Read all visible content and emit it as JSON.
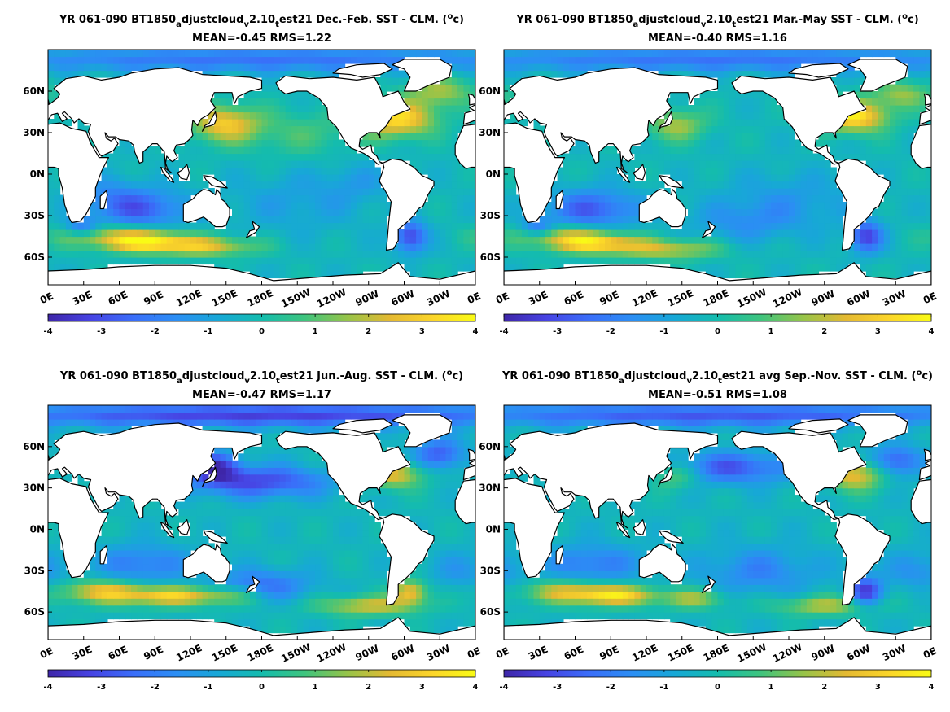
{
  "figure": {
    "colormap": [
      "#3e26a8",
      "#4743e3",
      "#3a6ef9",
      "#2b8ef4",
      "#17a8d6",
      "#14bcad",
      "#3ec47e",
      "#96c449",
      "#e4b932",
      "#fbd52a",
      "#f9fb15"
    ],
    "land_color": "#ffffff",
    "coastline_color": "#000000"
  },
  "chart_data": [
    {
      "type": "heatmap",
      "title_line1": {
        "pre": "YR 061-090 BT1850",
        "sub1": "a",
        "mid1": "djustcloud",
        "sub2": "v",
        "mid2": "2.10",
        "sub3": "t",
        "post": "est21  Dec.-Feb. SST - CLM. (",
        "sup": "o",
        "unit": "c)"
      },
      "stats": "MEAN=-0.45   RMS=1.22",
      "season": "DJF",
      "mean": -0.45,
      "rms": 1.22,
      "x_ticks": [
        "0E",
        "30E",
        "60E",
        "90E",
        "120E",
        "150E",
        "180E",
        "150W",
        "120W",
        "90W",
        "60W",
        "30W",
        "0E"
      ],
      "y_ticks": [
        "60N",
        "30N",
        "0N",
        "30S",
        "60S"
      ],
      "xlim": [
        0,
        360
      ],
      "ylim": [
        -80,
        90
      ],
      "colorbar_ticks": [
        "-4",
        "-3",
        "-2",
        "-1",
        "0",
        "1",
        "2",
        "3",
        "4"
      ],
      "clim": [
        -4,
        4
      ],
      "features": [
        {
          "region": "Gulf Stream / NW Atlantic",
          "value": 3.5
        },
        {
          "region": "Kuroshio extension",
          "value": 3.0
        },
        {
          "region": "Southern Ocean 40-55S",
          "value": 3.0
        },
        {
          "region": "Brazil-Malvinas confluence",
          "value": -3.0
        },
        {
          "region": "Central subtropical South Indian",
          "value": -2.5
        },
        {
          "region": "Arctic",
          "value": -2.0
        },
        {
          "region": "North Pacific central",
          "value": 1.0
        }
      ]
    },
    {
      "type": "heatmap",
      "title_line1": {
        "pre": "YR 061-090 BT1850",
        "sub1": "a",
        "mid1": "djustcloud",
        "sub2": "v",
        "mid2": "2.10",
        "sub3": "t",
        "post": "est21  Mar.-May SST - CLM. (",
        "sup": "o",
        "unit": "c)"
      },
      "stats": "MEAN=-0.40   RMS=1.16",
      "season": "MAM",
      "mean": -0.4,
      "rms": 1.16,
      "x_ticks": [
        "0E",
        "30E",
        "60E",
        "90E",
        "120E",
        "150E",
        "180E",
        "150W",
        "120W",
        "90W",
        "60W",
        "30W",
        "0E"
      ],
      "y_ticks": [
        "60N",
        "30N",
        "0N",
        "30S",
        "60S"
      ],
      "xlim": [
        0,
        360
      ],
      "ylim": [
        -80,
        90
      ],
      "colorbar_ticks": [
        "-4",
        "-3",
        "-2",
        "-1",
        "0",
        "1",
        "2",
        "3",
        "4"
      ],
      "clim": [
        -4,
        4
      ],
      "features": [
        {
          "region": "Gulf Stream / NW Atlantic",
          "value": 3.8
        },
        {
          "region": "Kuroshio extension",
          "value": 2.0
        },
        {
          "region": "Southern Ocean 40-55S",
          "value": 3.0
        },
        {
          "region": "Brazil-Malvinas confluence",
          "value": -3.0
        },
        {
          "region": "Central subtropical South Indian",
          "value": -2.5
        },
        {
          "region": "Arctic",
          "value": -2.0
        },
        {
          "region": "North Pacific central",
          "value": 0.5
        }
      ]
    },
    {
      "type": "heatmap",
      "title_line1": {
        "pre": "YR 061-090 BT1850",
        "sub1": "a",
        "mid1": "djustcloud",
        "sub2": "v",
        "mid2": "2.10",
        "sub3": "t",
        "post": "est21 Jun.-Aug. SST - CLM. (",
        "sup": "o",
        "unit": "c)"
      },
      "stats": "MEAN=-0.47   RMS=1.17",
      "season": "JJA",
      "mean": -0.47,
      "rms": 1.17,
      "x_ticks": [
        "0E",
        "30E",
        "60E",
        "90E",
        "120E",
        "150E",
        "180E",
        "150W",
        "120W",
        "90W",
        "60W",
        "30W",
        "0E"
      ],
      "y_ticks": [
        "60N",
        "30N",
        "0N",
        "30S",
        "60S"
      ],
      "xlim": [
        0,
        360
      ],
      "ylim": [
        -80,
        90
      ],
      "colorbar_ticks": [
        "-4",
        "-3",
        "-2",
        "-1",
        "0",
        "1",
        "2",
        "3",
        "4"
      ],
      "clim": [
        -4,
        4
      ],
      "features": [
        {
          "region": "Gulf Stream / NW Atlantic",
          "value": 3.0
        },
        {
          "region": "Kuroshio extension",
          "value": -3.0
        },
        {
          "region": "Southern Ocean 40-55S",
          "value": 3.0
        },
        {
          "region": "Brazil-Malvinas confluence",
          "value": 3.0
        },
        {
          "region": "Central subtropical South Indian",
          "value": -2.0
        },
        {
          "region": "Arctic",
          "value": -3.0
        },
        {
          "region": "North Pacific central",
          "value": -3.0
        }
      ]
    },
    {
      "type": "heatmap",
      "title_line1": {
        "pre": "YR 061-090 BT1850",
        "sub1": "a",
        "mid1": "djustcloud",
        "sub2": "v",
        "mid2": "2.10",
        "sub3": "t",
        "post": "est21 avg Sep.-Nov. SST - CLM. (",
        "sup": "o",
        "unit": "c)"
      },
      "stats": "MEAN=-0.51   RMS=1.08",
      "season": "SON",
      "mean": -0.51,
      "rms": 1.08,
      "x_ticks": [
        "0E",
        "30E",
        "60E",
        "90E",
        "120E",
        "150E",
        "180E",
        "150W",
        "120W",
        "90W",
        "60W",
        "30W",
        "0E"
      ],
      "y_ticks": [
        "60N",
        "30N",
        "0N",
        "30S",
        "60S"
      ],
      "xlim": [
        0,
        360
      ],
      "ylim": [
        -80,
        90
      ],
      "colorbar_ticks": [
        "-4",
        "-3",
        "-2",
        "-1",
        "0",
        "1",
        "2",
        "3",
        "4"
      ],
      "clim": [
        -4,
        4
      ],
      "features": [
        {
          "region": "Gulf Stream / NW Atlantic",
          "value": 3.0
        },
        {
          "region": "Kuroshio extension",
          "value": 2.0
        },
        {
          "region": "Southern Ocean 40-55S",
          "value": 3.0
        },
        {
          "region": "Brazil-Malvinas confluence",
          "value": -3.0
        },
        {
          "region": "Central subtropical South Indian",
          "value": -2.0
        },
        {
          "region": "Arctic",
          "value": -2.5
        },
        {
          "region": "North Pacific central",
          "value": -2.5
        }
      ]
    }
  ]
}
